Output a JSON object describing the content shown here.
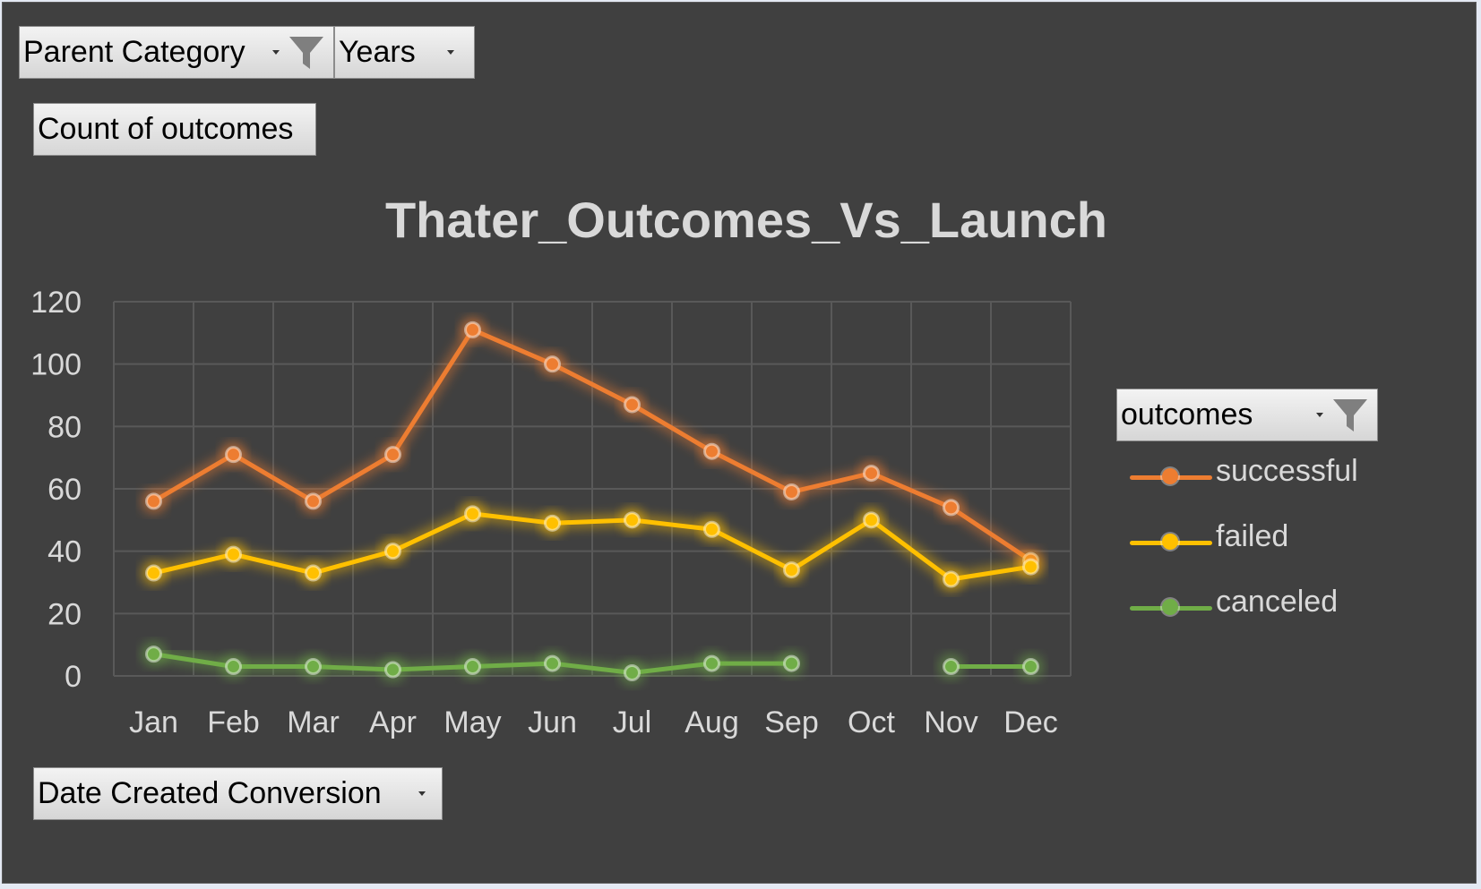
{
  "filters": {
    "parent_category": "Parent Category",
    "years": "Years",
    "value_field": "Count of outcomes",
    "legend_field": "outcomes",
    "axis_field": "Date Created Conversion"
  },
  "colors": {
    "background": "#404040",
    "gridline": "#595959",
    "text": "#d9d9d9",
    "successful": "#ed7d31",
    "failed": "#ffc000",
    "canceled": "#70ad47"
  },
  "chart_data": {
    "type": "line",
    "title": "Thater_Outcomes_Vs_Launch",
    "xlabel": "",
    "ylabel": "",
    "categories": [
      "Jan",
      "Feb",
      "Mar",
      "Apr",
      "May",
      "Jun",
      "Jul",
      "Aug",
      "Sep",
      "Oct",
      "Nov",
      "Dec"
    ],
    "ylim": [
      0,
      120
    ],
    "yticks": [
      "0",
      "20",
      "40",
      "60",
      "80",
      "100",
      "120"
    ],
    "grid": true,
    "legend_position": "right",
    "series": [
      {
        "name": "successful",
        "values": [
          56,
          71,
          56,
          71,
          111,
          100,
          87,
          72,
          59,
          65,
          54,
          37
        ]
      },
      {
        "name": "failed",
        "values": [
          33,
          39,
          33,
          40,
          52,
          49,
          50,
          47,
          34,
          50,
          31,
          35
        ]
      },
      {
        "name": "canceled",
        "values": [
          7,
          3,
          3,
          2,
          3,
          4,
          1,
          4,
          4,
          null,
          3,
          3
        ]
      }
    ]
  }
}
